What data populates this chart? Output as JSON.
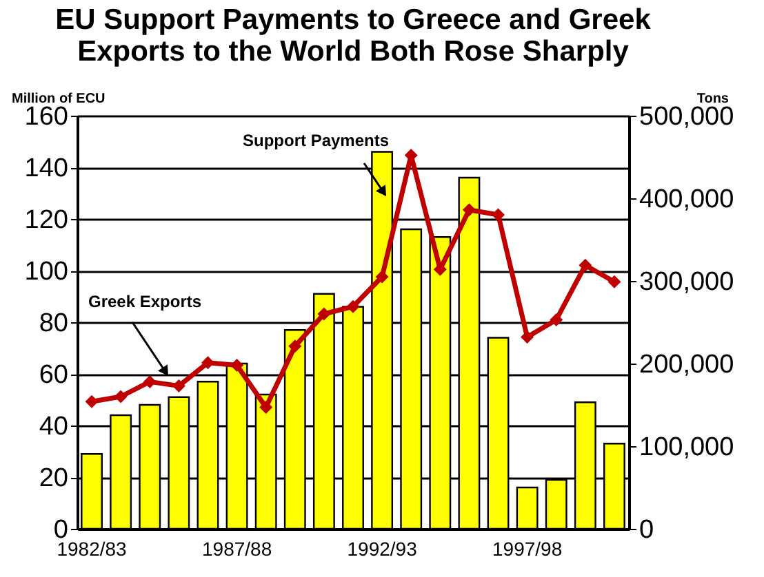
{
  "chart_data": {
    "type": "bar",
    "title": "EU Support Payments to Greece and Greek Exports to the World Both Rose Sharply",
    "ylabel": "Million of ECU",
    "y2label": "Tons",
    "categories": [
      "1982/83",
      null,
      null,
      null,
      null,
      "1987/88",
      null,
      null,
      null,
      null,
      "1992/93",
      null,
      null,
      null,
      null,
      "1997/98",
      null,
      null,
      null
    ],
    "series": [
      {
        "name": "Support Payments",
        "color": "#ffff00",
        "values": [
          29,
          44,
          48,
          51,
          57,
          64,
          52,
          77,
          91,
          86,
          146,
          116,
          113,
          136,
          74,
          16,
          19,
          49,
          33
        ]
      },
      {
        "name": "Greek Exports",
        "type": "line",
        "axis": "y2",
        "color": "#c00000",
        "marker": "diamond",
        "values": [
          154000,
          160000,
          178000,
          173000,
          201000,
          198000,
          147000,
          221000,
          260000,
          269000,
          305000,
          452000,
          314000,
          386000,
          380000,
          232000,
          253000,
          319000,
          299000
        ]
      }
    ],
    "ylim": [
      0,
      160
    ],
    "yticks": [
      0,
      20,
      40,
      60,
      80,
      100,
      120,
      140,
      160
    ],
    "y2lim": [
      0,
      500000
    ],
    "y2ticks": [
      0,
      {
        "value": 100000,
        "label": "100,000"
      },
      {
        "value": 200000,
        "label": "200,000"
      },
      {
        "value": 300000,
        "label": "300,000"
      },
      {
        "value": 400000,
        "label": "400,000"
      },
      {
        "value": 500000,
        "label": "500,000"
      }
    ],
    "grid": "y"
  }
}
